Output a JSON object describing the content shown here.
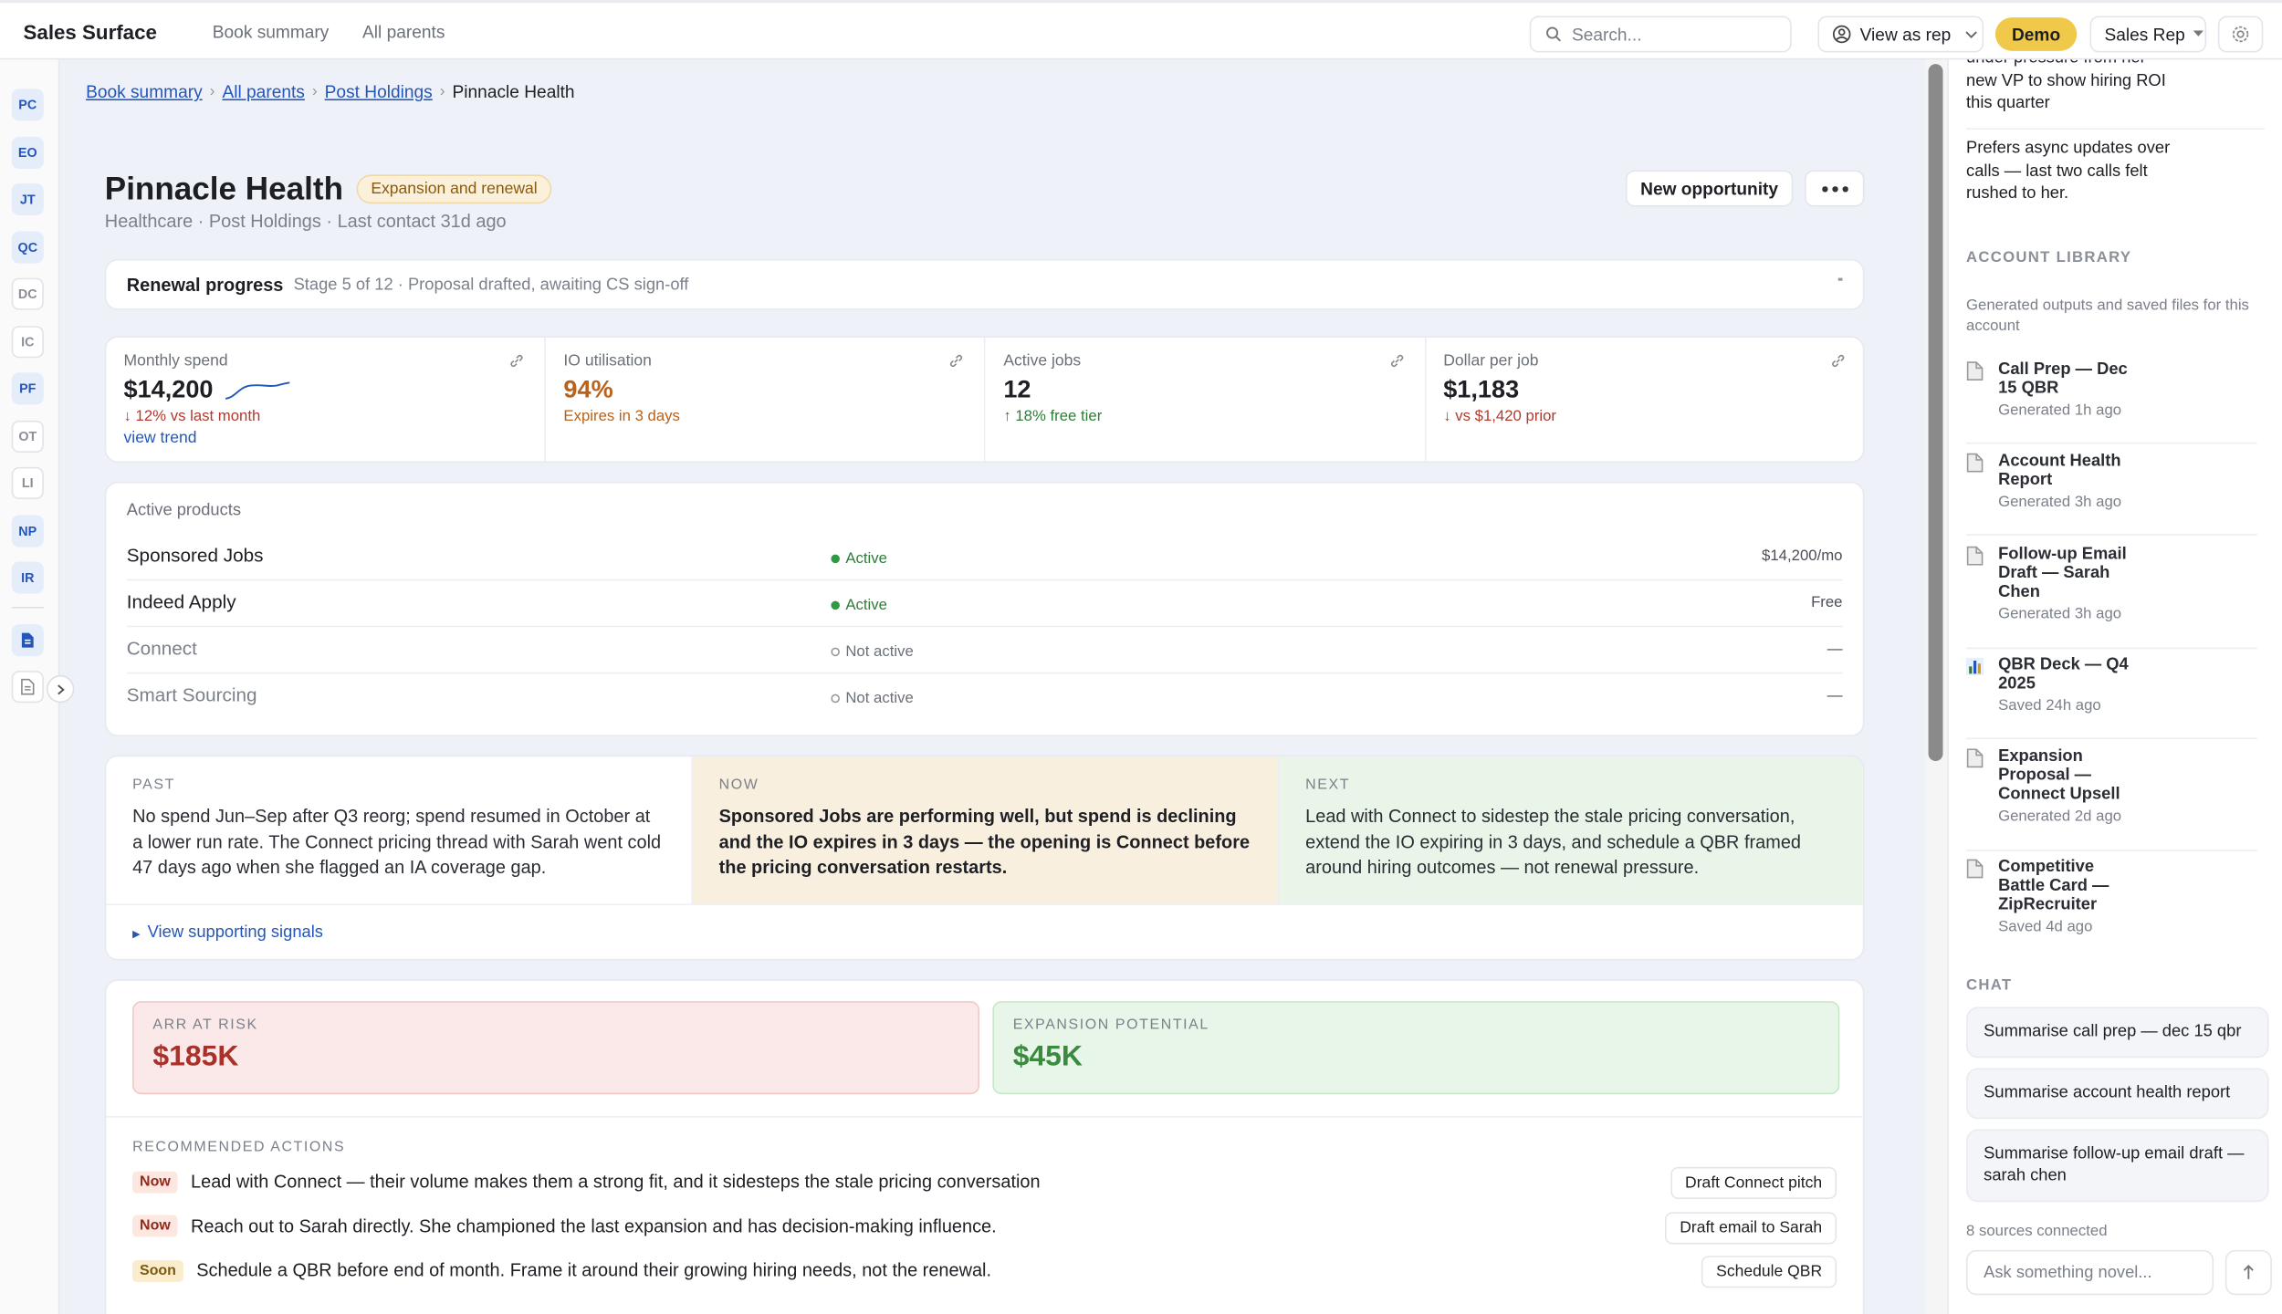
{
  "topbar": {
    "brand": "Sales Surface",
    "nav": [
      "Book summary",
      "All parents"
    ],
    "search_placeholder": "Search...",
    "view_as": "View as rep",
    "demo": "Demo",
    "role": "Sales Rep"
  },
  "sidebar": {
    "accounts": [
      {
        "initials": "PC",
        "active": true
      },
      {
        "initials": "EO",
        "active": true
      },
      {
        "initials": "JT",
        "active": true
      },
      {
        "initials": "QC",
        "active": true
      },
      {
        "initials": "DC",
        "active": false
      },
      {
        "initials": "IC",
        "active": false
      },
      {
        "initials": "PF",
        "active": true
      },
      {
        "initials": "OT",
        "active": false
      },
      {
        "initials": "LI",
        "active": false
      },
      {
        "initials": "NP",
        "active": true
      },
      {
        "initials": "IR",
        "active": true
      }
    ]
  },
  "breadcrumb": [
    "Book summary",
    "All parents",
    "Post Holdings",
    "Pinnacle Health"
  ],
  "header": {
    "title": "Pinnacle Health",
    "badge": "Expansion and renewal",
    "meta": "Healthcare · Post Holdings · Last contact 31d ago",
    "new_opportunity": "New opportunity"
  },
  "renewal": {
    "label": "Renewal progress",
    "detail": "Stage 5 of 12 · Proposal drafted, awaiting CS sign-off"
  },
  "metrics": [
    {
      "label": "Monthly spend",
      "value": "$14,200",
      "delta": "↓ 12% vs last month",
      "tone": "down",
      "link": "view trend"
    },
    {
      "label": "IO utilisation",
      "value": "94%",
      "delta": "Expires in 3 days",
      "tone": "warn"
    },
    {
      "label": "Active jobs",
      "value": "12",
      "delta": "↑ 18% free tier",
      "tone": "up"
    },
    {
      "label": "Dollar per job",
      "value": "$1,183",
      "delta": "↓ vs $1,420 prior",
      "tone": "down"
    }
  ],
  "products": {
    "title": "Active products",
    "rows": [
      {
        "name": "Sponsored Jobs",
        "status": "Active",
        "active": true,
        "price": "$14,200/mo"
      },
      {
        "name": "Indeed Apply",
        "status": "Active",
        "active": true,
        "price": "Free"
      },
      {
        "name": "Connect",
        "status": "Not active",
        "active": false,
        "price": "—"
      },
      {
        "name": "Smart Sourcing",
        "status": "Not active",
        "active": false,
        "price": "—"
      }
    ]
  },
  "narrative": {
    "columns": [
      {
        "label": "PAST",
        "text": "No spend Jun–Sep after Q3 reorg; spend resumed in October at a lower run rate. The Connect pricing thread with Sarah went cold 47 days ago when she flagged an IA coverage gap."
      },
      {
        "label": "NOW",
        "text": "Sponsored Jobs are performing well, but spend is declining and the IO expires in 3 days — the opening is Connect before the pricing conversation restarts."
      },
      {
        "label": "NEXT",
        "text": "Lead with Connect to sidestep the stale pricing conversation, extend the IO expiring in 3 days, and schedule a QBR framed around hiring outcomes — not renewal pressure."
      }
    ],
    "link": "View supporting signals"
  },
  "risk": {
    "arr_label": "ARR AT RISK",
    "arr_value": "$185K",
    "expansion_label": "EXPANSION POTENTIAL",
    "expansion_value": "$45K"
  },
  "actions": {
    "title": "RECOMMENDED ACTIONS",
    "items": [
      {
        "tag": "Now",
        "urgent": true,
        "text": "Lead with Connect — their volume makes them a strong fit, and it sidesteps the stale pricing conversation",
        "button": "Draft Connect pitch"
      },
      {
        "tag": "Now",
        "urgent": true,
        "text": "Reach out to Sarah directly. She championed the last expansion and has decision-making influence.",
        "button": "Draft email to Sarah"
      },
      {
        "tag": "Soon",
        "urgent": false,
        "text": "Schedule a QBR before end of month. Frame it around their growing hiring needs, not the renewal.",
        "button": "Schedule QBR"
      }
    ]
  },
  "panel": {
    "notes": [
      "under pressure from her new VP to show hiring ROI this quarter",
      "Prefers async updates over calls — last two calls felt rushed to her."
    ],
    "library_title": "ACCOUNT LIBRARY",
    "library_desc": "Generated outputs and saved files for this account",
    "library": [
      {
        "title": "Call Prep — Dec 15 QBR",
        "meta": "Generated 1h ago",
        "kind": "doc"
      },
      {
        "title": "Account Health Report",
        "meta": "Generated 3h ago",
        "kind": "doc"
      },
      {
        "title": "Follow-up Email Draft — Sarah Chen",
        "meta": "Generated 3h ago",
        "kind": "doc"
      },
      {
        "title": "QBR Deck — Q4 2025",
        "meta": "Saved 24h ago",
        "kind": "chart"
      },
      {
        "title": "Expansion Proposal — Connect Upsell",
        "meta": "Generated 2d ago",
        "kind": "doc"
      },
      {
        "title": "Competitive Battle Card — ZipRecruiter",
        "meta": "Saved 4d ago",
        "kind": "doc"
      }
    ],
    "chat_title": "CHAT",
    "chat": [
      "Summarise call prep — dec 15 qbr",
      "Summarise account health report",
      "Summarise follow-up email draft — sarah chen"
    ],
    "sources": "8 sources connected",
    "ask_placeholder": "Ask something novel..."
  }
}
